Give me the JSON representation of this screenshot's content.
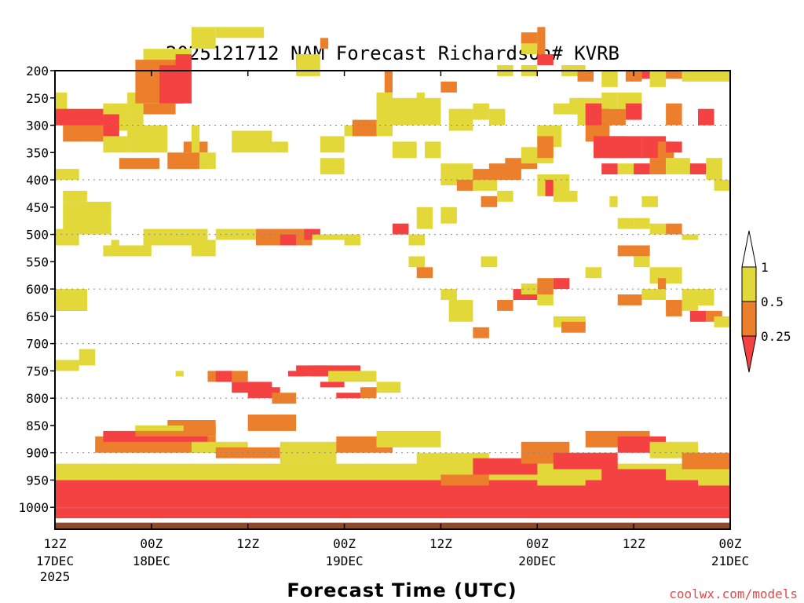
{
  "chart_data": {
    "type": "heatmap",
    "title": "2025121712 NAM Forecast Richardson# KVRB",
    "xlabel": "Forecast Time (UTC)",
    "x_unit": "hours since 2025-12-17 12Z",
    "xlim": [
      0,
      84
    ],
    "ylim": [
      200,
      1040
    ],
    "y_scale": "pressure (linear, inverted)",
    "grid": "dotted horizontal at 300,400,500,600,700,800,900 hPa",
    "x_ticks": [
      {
        "x": 0,
        "line1": "12Z",
        "line2": "17DEC",
        "line3": "2025"
      },
      {
        "x": 12,
        "line1": "00Z",
        "line2": "18DEC"
      },
      {
        "x": 24,
        "line1": "12Z",
        "line2": ""
      },
      {
        "x": 36,
        "line1": "00Z",
        "line2": "19DEC"
      },
      {
        "x": 48,
        "line1": "12Z",
        "line2": ""
      },
      {
        "x": 60,
        "line1": "00Z",
        "line2": "20DEC"
      },
      {
        "x": 72,
        "line1": "12Z",
        "line2": ""
      },
      {
        "x": 84,
        "line1": "00Z",
        "line2": "21DEC"
      }
    ],
    "y_ticks": [
      "200",
      "250",
      "300",
      "350",
      "400",
      "450",
      "500",
      "550",
      "600",
      "650",
      "700",
      "750",
      "800",
      "850",
      "900",
      "950",
      "1000"
    ],
    "legend": {
      "placement": "right",
      "entries": [
        {
          "label": "1",
          "color": "#e3d83a"
        },
        {
          "label": "0.5",
          "color": "#ec7f2c"
        },
        {
          "label": "0.25",
          "color": "#f44242"
        }
      ]
    },
    "category_colors": {
      "1": "#e3d83a",
      "2": "#ec7f2c",
      "3": "#f44242"
    },
    "ground_color": "#8b4a2b",
    "ground_top_hpa": 1028,
    "cells": [
      [
        0,
        1.5,
        240,
        300,
        1
      ],
      [
        1.5,
        6,
        270,
        300,
        1
      ],
      [
        6,
        9,
        260,
        310,
        1
      ],
      [
        9,
        11,
        240,
        300,
        1
      ],
      [
        11,
        17,
        160,
        240,
        1
      ],
      [
        17,
        20,
        120,
        160,
        1
      ],
      [
        20,
        26,
        120,
        140,
        1
      ],
      [
        0,
        6,
        270,
        300,
        3
      ],
      [
        6,
        8,
        280,
        310,
        3
      ],
      [
        1,
        6,
        300,
        330,
        2
      ],
      [
        6,
        8,
        300,
        330,
        3
      ],
      [
        10,
        16,
        180,
        260,
        2
      ],
      [
        11,
        15,
        260,
        280,
        2
      ],
      [
        13,
        16,
        190,
        260,
        3
      ],
      [
        15,
        17,
        170,
        260,
        3
      ],
      [
        6,
        9,
        320,
        350,
        1
      ],
      [
        9,
        14,
        300,
        350,
        1
      ],
      [
        8,
        13,
        360,
        380,
        2
      ],
      [
        14,
        18,
        350,
        380,
        2
      ],
      [
        16,
        19,
        330,
        350,
        2
      ],
      [
        18,
        20,
        350,
        380,
        1
      ],
      [
        0,
        3,
        380,
        400,
        1
      ],
      [
        17,
        18,
        300,
        350,
        1
      ],
      [
        1,
        4,
        420,
        440,
        1
      ],
      [
        2,
        6,
        460,
        480,
        2
      ],
      [
        1,
        7,
        440,
        500,
        1
      ],
      [
        0,
        3,
        490,
        520,
        1
      ],
      [
        7,
        8,
        510,
        520,
        1
      ],
      [
        6,
        12,
        520,
        540,
        1
      ],
      [
        11,
        19,
        490,
        520,
        1
      ],
      [
        17,
        20,
        510,
        540,
        1
      ],
      [
        20,
        24,
        490,
        510,
        1
      ],
      [
        24,
        30,
        490,
        510,
        1
      ],
      [
        25,
        31,
        490,
        520,
        2
      ],
      [
        28,
        30,
        500,
        520,
        3
      ],
      [
        30,
        32,
        490,
        520,
        2
      ],
      [
        31,
        33,
        490,
        510,
        3
      ],
      [
        32,
        36,
        500,
        510,
        1
      ],
      [
        30,
        32,
        170,
        190,
        3
      ],
      [
        30,
        33,
        170,
        210,
        1
      ],
      [
        33,
        34,
        140,
        160,
        2
      ],
      [
        36,
        38,
        500,
        520,
        1
      ],
      [
        27,
        29,
        330,
        350,
        1
      ],
      [
        23,
        25,
        320,
        345,
        2
      ],
      [
        22,
        27,
        310,
        350,
        1
      ],
      [
        36,
        40,
        300,
        320,
        1
      ],
      [
        37,
        40,
        290,
        320,
        2
      ],
      [
        40,
        41,
        260,
        290,
        2
      ],
      [
        40,
        42,
        240,
        320,
        1
      ],
      [
        41,
        42,
        200,
        240,
        2
      ],
      [
        45,
        46,
        240,
        280,
        1
      ],
      [
        42,
        45,
        330,
        360,
        1
      ],
      [
        33,
        36,
        320,
        350,
        1
      ],
      [
        33,
        36,
        360,
        390,
        1
      ],
      [
        0,
        4,
        620,
        640,
        2
      ],
      [
        0,
        4,
        600,
        640,
        1
      ],
      [
        3,
        5,
        710,
        740,
        1
      ],
      [
        0,
        3,
        730,
        750,
        1
      ],
      [
        15,
        16,
        750,
        760,
        1
      ],
      [
        19,
        24,
        750,
        770,
        2
      ],
      [
        20,
        22,
        750,
        770,
        3
      ],
      [
        22,
        27,
        770,
        790,
        3
      ],
      [
        24,
        28,
        780,
        800,
        3
      ],
      [
        27,
        30,
        790,
        810,
        2
      ],
      [
        29,
        31,
        750,
        760,
        3
      ],
      [
        30,
        34,
        740,
        760,
        3
      ],
      [
        32,
        38,
        740,
        760,
        3
      ],
      [
        34,
        40,
        750,
        770,
        1
      ],
      [
        33,
        36,
        770,
        780,
        3
      ],
      [
        35,
        38,
        790,
        800,
        3
      ],
      [
        38,
        40,
        780,
        800,
        2
      ],
      [
        40,
        43,
        770,
        790,
        1
      ],
      [
        0,
        84,
        950,
        1000,
        3
      ],
      [
        0,
        84,
        1000,
        1020,
        3
      ],
      [
        0,
        84,
        920,
        950,
        1
      ],
      [
        5,
        20,
        870,
        900,
        2
      ],
      [
        6,
        19,
        860,
        880,
        3
      ],
      [
        10,
        20,
        850,
        870,
        2
      ],
      [
        17,
        24,
        880,
        900,
        1
      ],
      [
        20,
        28,
        890,
        910,
        2
      ],
      [
        28,
        35,
        880,
        920,
        1
      ],
      [
        35,
        42,
        870,
        900,
        2
      ],
      [
        40,
        48,
        860,
        890,
        1
      ],
      [
        45,
        54,
        900,
        930,
        1
      ],
      [
        52,
        60,
        910,
        940,
        3
      ],
      [
        58,
        64,
        880,
        920,
        2
      ],
      [
        62,
        70,
        900,
        930,
        3
      ],
      [
        66,
        74,
        860,
        890,
        2
      ],
      [
        70,
        76,
        870,
        900,
        3
      ],
      [
        74,
        80,
        880,
        910,
        1
      ],
      [
        78,
        84,
        900,
        930,
        2
      ],
      [
        55,
        60,
        920,
        940,
        3
      ],
      [
        48,
        54,
        940,
        960,
        2
      ],
      [
        60,
        66,
        940,
        960,
        1
      ],
      [
        68,
        76,
        930,
        960,
        3
      ],
      [
        80,
        84,
        940,
        960,
        1
      ],
      [
        24,
        30,
        830,
        860,
        2
      ],
      [
        14,
        20,
        840,
        860,
        2
      ],
      [
        10,
        16,
        850,
        860,
        1
      ],
      [
        41,
        48,
        250,
        300,
        1
      ],
      [
        48,
        50,
        220,
        240,
        2
      ],
      [
        50,
        51,
        270,
        290,
        1
      ],
      [
        49,
        52,
        270,
        310,
        1
      ],
      [
        52,
        54,
        260,
        290,
        1
      ],
      [
        54,
        56,
        270,
        300,
        1
      ],
      [
        46,
        48,
        330,
        360,
        1
      ],
      [
        48,
        52,
        370,
        410,
        1
      ],
      [
        50,
        52,
        400,
        420,
        2
      ],
      [
        52,
        55,
        400,
        420,
        1
      ],
      [
        52,
        56,
        380,
        400,
        2
      ],
      [
        54,
        58,
        370,
        400,
        2
      ],
      [
        56,
        60,
        360,
        380,
        2
      ],
      [
        58,
        62,
        340,
        370,
        1
      ],
      [
        60,
        62,
        300,
        330,
        1
      ],
      [
        58,
        60,
        130,
        170,
        1
      ],
      [
        58,
        60,
        130,
        150,
        2
      ],
      [
        60,
        61,
        120,
        170,
        2
      ],
      [
        60,
        62,
        170,
        190,
        3
      ],
      [
        62,
        66,
        260,
        280,
        1
      ],
      [
        60,
        63,
        300,
        340,
        1
      ],
      [
        60,
        62,
        320,
        360,
        2
      ],
      [
        60,
        64,
        390,
        430,
        1
      ],
      [
        61,
        62,
        400,
        430,
        3
      ],
      [
        62,
        65,
        420,
        440,
        1
      ],
      [
        55,
        57,
        420,
        440,
        1
      ],
      [
        53,
        55,
        430,
        450,
        2
      ],
      [
        45,
        47,
        450,
        490,
        1
      ],
      [
        48,
        50,
        450,
        480,
        1
      ],
      [
        44,
        46,
        500,
        520,
        1
      ],
      [
        42,
        44,
        480,
        500,
        3
      ],
      [
        44,
        46,
        540,
        560,
        1
      ],
      [
        45,
        47,
        560,
        580,
        2
      ],
      [
        48,
        50,
        600,
        620,
        1
      ],
      [
        49,
        52,
        620,
        660,
        1
      ],
      [
        53,
        55,
        540,
        560,
        1
      ],
      [
        55,
        57,
        620,
        640,
        2
      ],
      [
        52,
        54,
        670,
        690,
        2
      ],
      [
        57,
        60,
        600,
        620,
        3
      ],
      [
        58,
        60,
        590,
        610,
        1
      ],
      [
        60,
        62,
        580,
        610,
        2
      ],
      [
        62,
        64,
        580,
        600,
        3
      ],
      [
        66,
        68,
        560,
        580,
        1
      ],
      [
        60,
        62,
        610,
        630,
        1
      ],
      [
        62,
        66,
        650,
        670,
        1
      ],
      [
        63,
        66,
        660,
        680,
        2
      ],
      [
        64,
        66,
        250,
        280,
        1
      ],
      [
        65,
        68,
        250,
        300,
        1
      ],
      [
        66,
        69,
        260,
        300,
        3
      ],
      [
        68,
        71,
        270,
        300,
        2
      ],
      [
        68,
        70,
        240,
        270,
        1
      ],
      [
        70,
        73,
        240,
        270,
        1
      ],
      [
        71,
        73,
        260,
        290,
        3
      ],
      [
        66,
        69,
        300,
        330,
        2
      ],
      [
        67,
        71,
        320,
        360,
        3
      ],
      [
        69,
        73,
        320,
        360,
        3
      ],
      [
        73,
        76,
        320,
        360,
        3
      ],
      [
        75,
        77,
        330,
        360,
        2
      ],
      [
        76,
        78,
        330,
        350,
        3
      ],
      [
        68,
        70,
        370,
        390,
        3
      ],
      [
        70,
        72,
        370,
        390,
        1
      ],
      [
        72,
        74,
        370,
        390,
        3
      ],
      [
        74,
        76,
        360,
        390,
        2
      ],
      [
        76,
        79,
        360,
        390,
        1
      ],
      [
        79,
        81,
        370,
        390,
        3
      ],
      [
        81,
        83,
        360,
        400,
        1
      ],
      [
        82,
        84,
        400,
        420,
        1
      ],
      [
        73,
        75,
        430,
        450,
        1
      ],
      [
        69,
        70,
        430,
        450,
        1
      ],
      [
        70,
        72,
        470,
        490,
        1
      ],
      [
        72,
        74,
        470,
        490,
        1
      ],
      [
        74,
        76,
        480,
        500,
        1
      ],
      [
        76,
        78,
        480,
        500,
        2
      ],
      [
        78,
        80,
        500,
        510,
        1
      ],
      [
        70,
        73,
        610,
        630,
        2
      ],
      [
        73,
        76,
        600,
        620,
        1
      ],
      [
        76,
        78,
        620,
        640,
        1
      ],
      [
        78,
        80,
        600,
        620,
        1
      ],
      [
        70,
        74,
        520,
        540,
        2
      ],
      [
        72,
        74,
        540,
        560,
        1
      ],
      [
        74,
        78,
        560,
        590,
        1
      ],
      [
        75,
        76,
        580,
        600,
        2
      ],
      [
        76,
        78,
        620,
        650,
        2
      ],
      [
        78,
        80,
        620,
        640,
        1
      ],
      [
        79,
        81,
        640,
        660,
        3
      ],
      [
        81,
        83,
        640,
        660,
        2
      ],
      [
        82,
        84,
        650,
        670,
        1
      ],
      [
        80,
        82,
        600,
        630,
        1
      ],
      [
        63,
        66,
        190,
        210,
        1
      ],
      [
        65,
        67,
        200,
        220,
        2
      ],
      [
        68,
        70,
        200,
        230,
        1
      ],
      [
        71,
        73,
        200,
        220,
        2
      ],
      [
        73,
        75,
        200,
        215,
        3
      ],
      [
        74,
        76,
        200,
        230,
        1
      ],
      [
        76,
        78,
        200,
        215,
        2
      ],
      [
        78,
        80,
        200,
        220,
        1
      ],
      [
        80,
        82,
        200,
        220,
        1
      ],
      [
        82,
        84,
        200,
        220,
        1
      ],
      [
        58,
        60,
        190,
        210,
        1
      ],
      [
        55,
        57,
        190,
        210,
        1
      ],
      [
        76,
        78,
        260,
        300,
        2
      ],
      [
        80,
        82,
        270,
        300,
        3
      ]
    ],
    "image_size": [
      1024,
      768
    ]
  },
  "credit": "coolwx.com/models"
}
